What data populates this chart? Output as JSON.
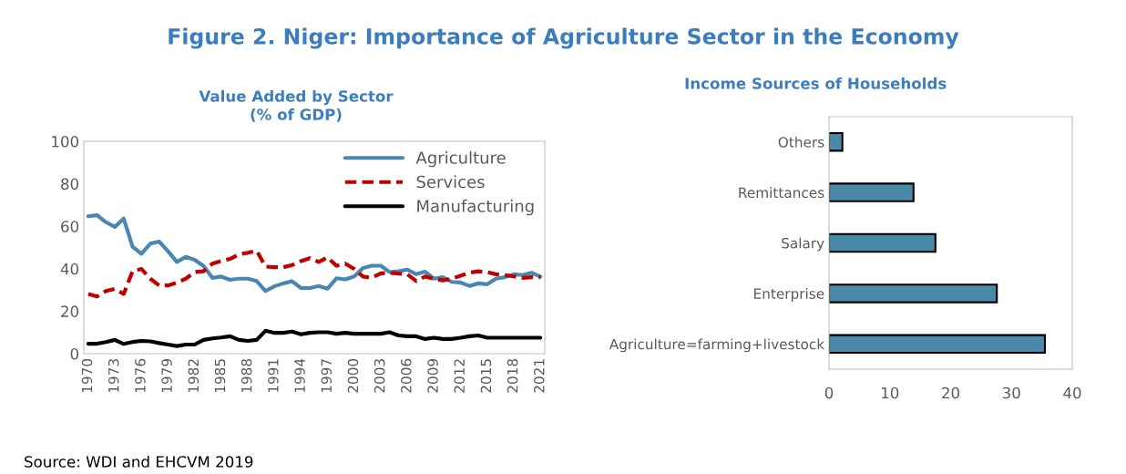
{
  "chart_data": [
    {
      "type": "line",
      "title": "Figure 2. Niger: Importance of Agriculture Sector in the Economy",
      "subtitle": "Value Added by Sector\n(% of GDP)",
      "x": [
        1970,
        1971,
        1972,
        1973,
        1974,
        1975,
        1976,
        1977,
        1978,
        1979,
        1980,
        1981,
        1982,
        1983,
        1984,
        1985,
        1986,
        1987,
        1988,
        1989,
        1990,
        1991,
        1992,
        1993,
        1994,
        1995,
        1996,
        1997,
        1998,
        1999,
        2000,
        2001,
        2002,
        2003,
        2004,
        2005,
        2006,
        2007,
        2008,
        2009,
        2010,
        2011,
        2012,
        2013,
        2014,
        2015,
        2016,
        2017,
        2018,
        2019,
        2020,
        2021
      ],
      "series": [
        {
          "name": "Agriculture",
          "color": "#4a86b4",
          "line_style": "solid",
          "values": [
            64.7,
            65.2,
            61.9,
            59.7,
            63.6,
            50.4,
            47,
            51.8,
            52.8,
            48.2,
            43.2,
            45.6,
            44.2,
            41.3,
            35.7,
            36.3,
            34.8,
            35.3,
            35.3,
            34.2,
            29.5,
            31.7,
            33.1,
            34.1,
            30.9,
            30.9,
            31.9,
            30.6,
            35.5,
            35,
            36.4,
            40.3,
            41.4,
            41.4,
            38.4,
            38.8,
            39.6,
            37.4,
            38.6,
            35.3,
            36,
            33.8,
            33.5,
            31.9,
            33.1,
            32.7,
            35.3,
            36,
            37.4,
            37,
            38.1,
            36.3
          ]
        },
        {
          "name": "Services",
          "color": "#c00000",
          "line_style": "dashed",
          "values": [
            28.1,
            26.9,
            29.5,
            30.5,
            28.1,
            38.8,
            39.9,
            35.3,
            32.1,
            32.1,
            33.4,
            35.3,
            38.4,
            38.8,
            42.4,
            43.6,
            44.6,
            46.8,
            47.5,
            48.5,
            41,
            40.7,
            40.7,
            41.7,
            43.6,
            45,
            43.2,
            45.3,
            41.4,
            42.4,
            39.9,
            36.3,
            35.7,
            37.8,
            38.1,
            37.7,
            37.4,
            34.2,
            36.3,
            35.3,
            34.5,
            35.3,
            36.7,
            38.1,
            38.8,
            38.4,
            37.4,
            37,
            36.4,
            35.7,
            36,
            36
          ]
        },
        {
          "name": "Manufacturing",
          "color": "#000000",
          "line_style": "solid",
          "values": [
            4.7,
            4.7,
            5.5,
            6.5,
            4.6,
            5.5,
            6,
            5.8,
            5,
            4.3,
            3.6,
            4.3,
            4.3,
            6.5,
            7.2,
            7.6,
            8.2,
            6.5,
            6,
            6.5,
            10.8,
            9.8,
            9.8,
            10.4,
            9.1,
            9.8,
            10.1,
            10.1,
            9.4,
            9.8,
            9.4,
            9.4,
            9.4,
            9.4,
            10.1,
            8.6,
            8.2,
            8.2,
            6.9,
            7.5,
            6.9,
            6.9,
            7.5,
            8.2,
            8.6,
            7.5,
            7.5,
            7.5,
            7.5,
            7.5,
            7.5,
            7.5
          ]
        }
      ],
      "xlim": [
        1969.5,
        2021.5
      ],
      "xticks": [
        1970,
        1973,
        1976,
        1979,
        1982,
        1985,
        1988,
        1991,
        1994,
        1997,
        2000,
        2003,
        2006,
        2009,
        2012,
        2015,
        2018,
        2021
      ],
      "ylim": [
        0,
        100
      ],
      "yticks": [
        0,
        20,
        40,
        60,
        80,
        100
      ],
      "grid": false,
      "legend": "top right",
      "marker": "none",
      "annotations": [
        "Source: WDI and EHCVM 2019"
      ]
    },
    {
      "type": "bar",
      "orientation": "horizontal",
      "title": "Income Sources of Households",
      "categories": [
        "Others",
        "Remittances",
        "Salary",
        "Enterprise",
        "Agriculture=farming+livestock"
      ],
      "values": [
        2.2,
        13.9,
        17.5,
        27.6,
        35.5
      ],
      "color": "#4a89aa",
      "xlim": [
        0,
        40
      ],
      "xticks": [
        0,
        10,
        20,
        30,
        40
      ],
      "grid": false
    }
  ]
}
